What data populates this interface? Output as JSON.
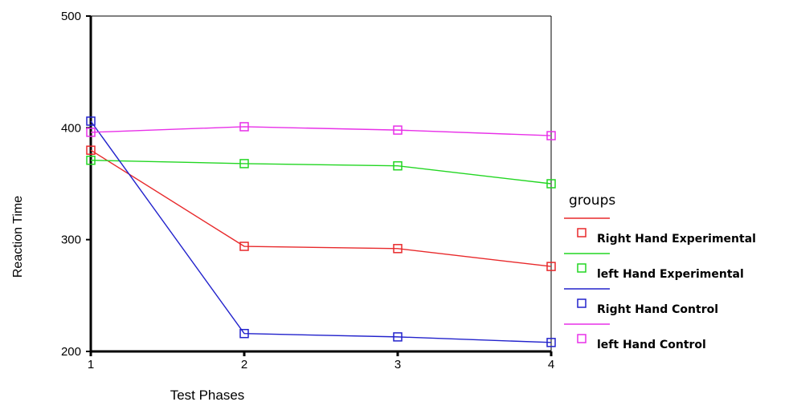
{
  "chart_data": {
    "type": "line",
    "xlabel": "Test Phases",
    "ylabel": "Reaction Time",
    "x": [
      1,
      2,
      3,
      4
    ],
    "xlim": [
      1,
      4
    ],
    "ylim": [
      200,
      500
    ],
    "yticks": [
      200,
      300,
      400,
      500
    ],
    "grid": false,
    "legend": {
      "title": "groups",
      "position": "right"
    },
    "series": [
      {
        "name": "Right Hand Experimental",
        "color": "#e8292b",
        "values": [
          380,
          294,
          292,
          276
        ]
      },
      {
        "name": "left Hand Experimental",
        "color": "#22d622",
        "values": [
          371,
          368,
          366,
          350
        ]
      },
      {
        "name": "Right Hand Control",
        "color": "#2222cc",
        "values": [
          406,
          216,
          213,
          208
        ]
      },
      {
        "name": "left Hand Control",
        "color": "#e830e8",
        "values": [
          396,
          401,
          398,
          393
        ]
      }
    ]
  }
}
